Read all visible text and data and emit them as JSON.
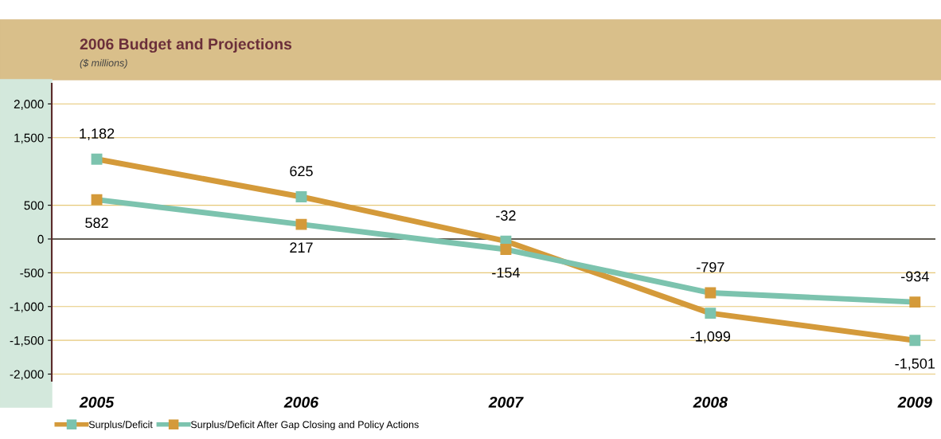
{
  "chart_data": {
    "type": "line",
    "title": "2006 Budget and Projections",
    "subtitle": "($ millions)",
    "categories": [
      "2005",
      "2006",
      "2007",
      "2008",
      "2009"
    ],
    "series": [
      {
        "name": "Surplus/Deficit",
        "color": "#d49a3a",
        "values": [
          1182,
          625,
          -32,
          -1099,
          -1501
        ],
        "value_labels": [
          "1,182",
          "625",
          "-32",
          "-1,099",
          "-1,501"
        ]
      },
      {
        "name": "Surplus/Deficit After Gap Closing and Policy Actions",
        "color": "#7cc3ae",
        "values": [
          582,
          217,
          -154,
          -797,
          -934
        ],
        "value_labels": [
          "582",
          "217",
          "-154",
          "-797",
          "-934"
        ]
      }
    ],
    "ylim": [
      -2100,
      2300
    ],
    "yticks": [
      {
        "value": 2000,
        "label": "2,000"
      },
      {
        "value": 1500,
        "label": "1,500"
      },
      500,
      0,
      -500,
      {
        "value": -1000,
        "label": "-1,000"
      },
      {
        "value": -1500,
        "label": "-1,500"
      },
      {
        "value": -2000,
        "label": "-2,000"
      }
    ],
    "grid": "y",
    "legend": "bottom left",
    "marker": "square",
    "line_style": "solid"
  }
}
